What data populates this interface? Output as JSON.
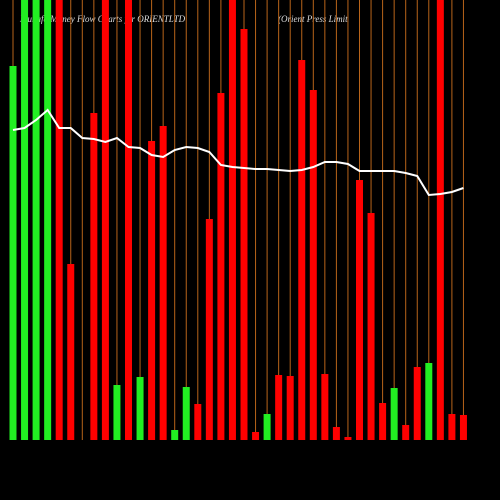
{
  "chart_data": {
    "type": "bar-line",
    "title": "Munafa Money Flow Charts for ORIENTLTD",
    "subtitle": "(Orient Press Limit",
    "categories": [
      null,
      null,
      null,
      null,
      null,
      null,
      null,
      null,
      null,
      null,
      null,
      null,
      null,
      null,
      null,
      null,
      null,
      null,
      null,
      null,
      null,
      null,
      null,
      null,
      null,
      null,
      null,
      null,
      null,
      null,
      null,
      null,
      null,
      null,
      null,
      null,
      null,
      null,
      null,
      null
    ],
    "values": [
      374,
      440,
      440,
      440,
      440,
      176,
      0,
      327,
      440,
      55,
      440,
      63,
      299,
      314,
      10,
      53,
      36,
      221,
      347,
      440,
      411,
      8,
      26,
      65,
      64,
      380,
      350,
      66,
      13,
      3,
      260,
      227,
      37,
      52,
      15,
      73,
      77,
      440,
      26,
      25
    ],
    "colors": [
      "#22ee22",
      "#22ee22",
      "#22ee22",
      "#22ee22",
      "#ff0000",
      "#ff0000",
      "#ff0000",
      "#ff0000",
      "#ff0000",
      "#22ee22",
      "#ff0000",
      "#22ee22",
      "#ff0000",
      "#ff0000",
      "#22ee22",
      "#22ee22",
      "#ff0000",
      "#ff0000",
      "#ff0000",
      "#ff0000",
      "#ff0000",
      "#ff0000",
      "#22ee22",
      "#ff0000",
      "#ff0000",
      "#ff0000",
      "#ff0000",
      "#ff0000",
      "#ff0000",
      "#ff0000",
      "#ff0000",
      "#ff0000",
      "#ff0000",
      "#22ee22",
      "#ff0000",
      "#ff0000",
      "#22ee22",
      "#ff0000",
      "#ff0000",
      "#ff0000"
    ],
    "line_values": [
      310,
      312,
      320,
      330,
      312,
      312,
      302,
      301,
      298,
      302,
      293,
      292,
      285,
      283,
      290,
      293,
      292,
      288,
      275,
      273,
      272,
      271,
      271,
      270,
      269,
      270,
      273,
      278,
      278,
      276,
      269,
      269,
      269,
      269,
      267,
      264,
      245,
      246,
      248,
      252
    ],
    "line_color": "#ffffff",
    "ylim": [
      0,
      440
    ],
    "grid_color": "#b8641a"
  }
}
